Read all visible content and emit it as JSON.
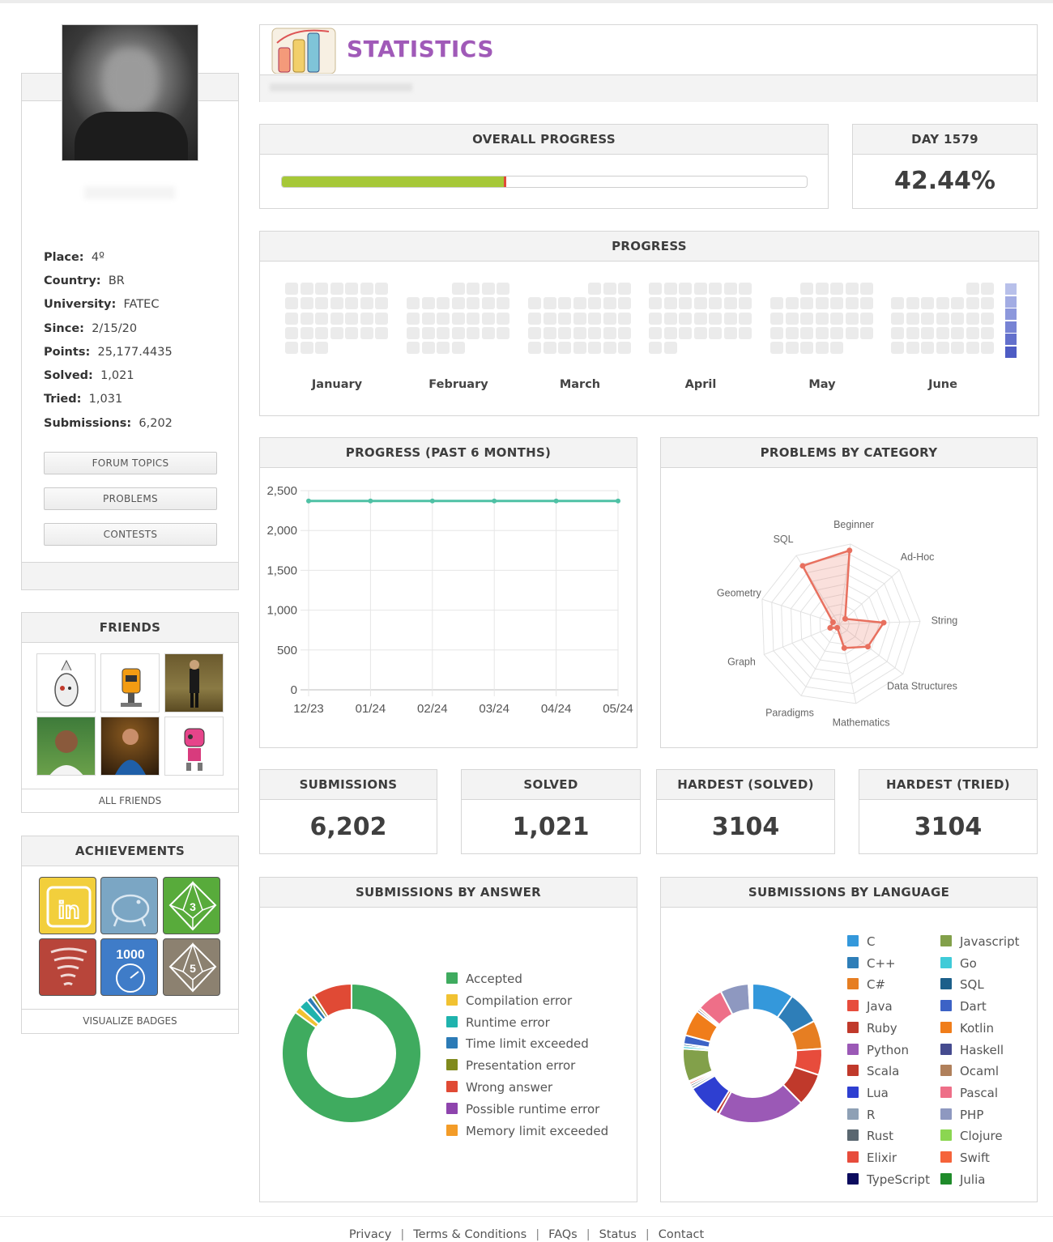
{
  "profile": {
    "place_label": "Place:",
    "place": "4º",
    "country_label": "Country:",
    "country": "BR",
    "university_label": "University:",
    "university": "FATEC",
    "since_label": "Since:",
    "since": "2/15/20",
    "points_label": "Points:",
    "points": "25,177.4435",
    "solved_label": "Solved:",
    "solved": "1,021",
    "tried_label": "Tried:",
    "tried": "1,031",
    "submissions_label": "Submissions:",
    "submissions": "6,202"
  },
  "sidebar_buttons": {
    "forum": "FORUM TOPICS",
    "problems": "PROBLEMS",
    "contests": "CONTESTS"
  },
  "friends": {
    "title": "FRIENDS",
    "all": "ALL FRIENDS"
  },
  "achievements": {
    "title": "ACHIEVEMENTS",
    "visualize": "VISUALIZE BADGES",
    "badge_1000": "1000",
    "badge_3": "3",
    "badge_5": "5"
  },
  "header": {
    "title": "STATISTICS"
  },
  "overall": {
    "title": "OVERALL PROGRESS",
    "fraction": 0.427
  },
  "day": {
    "title": "DAY 1579",
    "value": "42.44%"
  },
  "progress": {
    "title": "PROGRESS",
    "months": [
      "January",
      "February",
      "March",
      "April",
      "May",
      "June"
    ]
  },
  "line_chart": {
    "title": "PROGRESS (PAST 6 MONTHS)",
    "chart_data": {
      "type": "line",
      "x": [
        "12/23",
        "01/24",
        "02/24",
        "03/24",
        "04/24",
        "05/24"
      ],
      "series": [
        {
          "values": [
            2370,
            2370,
            2370,
            2370,
            2370,
            2370
          ]
        }
      ],
      "yticks": [
        "0",
        "500",
        "1,000",
        "1,500",
        "2,000",
        "2,500"
      ],
      "ylim": [
        0,
        2500
      ],
      "color": "#4fc1a5",
      "grid": true
    }
  },
  "radar": {
    "title": "PROBLEMS BY CATEGORY",
    "chart_data": {
      "type": "radar",
      "categories": [
        "Beginner",
        "Ad-Hoc",
        "String",
        "Data Structures",
        "Mathematics",
        "Paradigms",
        "Graph",
        "Geometry",
        "SQL"
      ],
      "values": [
        0.92,
        0.1,
        0.55,
        0.45,
        0.3,
        0.05,
        0.12,
        0.08,
        0.85
      ],
      "color": "#e8705f"
    }
  },
  "stats": [
    {
      "title": "SUBMISSIONS",
      "value": "6,202"
    },
    {
      "title": "SOLVED",
      "value": "1,021"
    },
    {
      "title": "HARDEST (SOLVED)",
      "value": "3104"
    },
    {
      "title": "HARDEST (TRIED)",
      "value": "3104"
    }
  ],
  "answers": {
    "title": "SUBMISSIONS BY ANSWER",
    "chart_data": {
      "type": "pie",
      "labels": [
        "Accepted",
        "Compilation error",
        "Runtime error",
        "Time limit exceeded",
        "Presentation error",
        "Wrong answer",
        "Possible runtime error",
        "Memory limit exceeded"
      ],
      "values": [
        82.5,
        1.5,
        2.2,
        1.2,
        0.8,
        8.8,
        0,
        0
      ],
      "colors": [
        "#3fab5f",
        "#f1c232",
        "#1fb3ad",
        "#2c7bb6",
        "#808a1d",
        "#e04a35",
        "#8e44ad",
        "#f39c28"
      ]
    }
  },
  "languages": {
    "title": "SUBMISSIONS BY LANGUAGE",
    "chart_data": {
      "type": "pie",
      "labels": [
        "C",
        "C++",
        "C#",
        "Java",
        "Ruby",
        "Python",
        "Scala",
        "Lua",
        "R",
        "Rust",
        "Elixir",
        "TypeScript",
        "Javascript",
        "Go",
        "SQL",
        "Dart",
        "Kotlin",
        "Haskell",
        "Ocaml",
        "Pascal",
        "PHP",
        "Clojure",
        "Swift",
        "Julia"
      ],
      "values": [
        9.5,
        7.5,
        6.5,
        6.0,
        7.5,
        20.0,
        0.8,
        7.5,
        0.6,
        0.5,
        0.5,
        0.3,
        7.5,
        0.6,
        0.5,
        2.0,
        6.0,
        0.5,
        0.5,
        6.0,
        6.5,
        0.3,
        0.3,
        0.3
      ],
      "colors": [
        "#3498db",
        "#2e7eb8",
        "#e67e22",
        "#e74c3c",
        "#c0392b",
        "#9b59b6",
        "#c0392b",
        "#2e3fd1",
        "#8ea0b5",
        "#5a6770",
        "#e74c3c",
        "#0b0b5e",
        "#82a04a",
        "#3fcbd8",
        "#1c5f8a",
        "#3c62c6",
        "#f07d1a",
        "#454b8f",
        "#b0805b",
        "#ee6f88",
        "#8e98c0",
        "#8bd651",
        "#f5633a",
        "#1f8b2a"
      ]
    }
  },
  "footer": {
    "privacy": "Privacy",
    "terms": "Terms & Conditions",
    "faqs": "FAQs",
    "status": "Status",
    "contact": "Contact"
  }
}
